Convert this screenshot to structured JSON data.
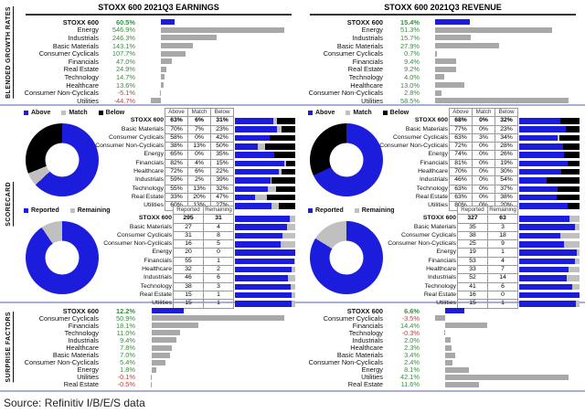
{
  "source": "Source: Refinitiv I/B/E/S data",
  "colors": {
    "blue": "#1c1cdd",
    "gray_bar": "#a8a8a8",
    "match_gray": "#c0c0c0",
    "black": "#000000",
    "green": "#3d8a44",
    "red": "#bb4040",
    "divider": "#a9aed6"
  },
  "sections": {
    "growth": {
      "side_label": "BLENDED GROWTH RATES"
    },
    "scorecard": {
      "side_label": "SCORECARD"
    },
    "surprise": {
      "side_label": "SURPRISE FACTORS"
    }
  },
  "chart_data": [
    {
      "id": "earnings_growth",
      "type": "bar",
      "title": "STOXX 600 2021Q3 EARNINGS",
      "categories": [
        "STOXX 600",
        "Energy",
        "Industrials",
        "Basic Materials",
        "Consumer Cyclicals",
        "Financials",
        "Real Estate",
        "Technology",
        "Healthcare",
        "Consumer Non-Cyclicals",
        "Utilities"
      ],
      "values": [
        60.5,
        546.9,
        246.3,
        143.1,
        107.7,
        47.0,
        24.9,
        14.7,
        13.6,
        -5.1,
        -44.7
      ],
      "unit": "%",
      "highlight_index": 0,
      "highlight_color_meaning": "STOXX 600 total shown in blue, sectors in gray"
    },
    {
      "id": "revenue_growth",
      "type": "bar",
      "title": "STOXX 600 2021Q3 REVENUE",
      "categories": [
        "STOXX 600",
        "Energy",
        "Industrials",
        "Basic Materials",
        "Consumer Cyclicals",
        "Financials",
        "Real Estate",
        "Technology",
        "Healthcare",
        "Consumer Non-Cyclicals",
        "Utilities"
      ],
      "values": [
        15.4,
        51.3,
        15.7,
        27.9,
        0.7,
        9.4,
        9.2,
        4.0,
        13.0,
        2.8,
        58.5
      ],
      "unit": "%",
      "highlight_index": 0
    },
    {
      "id": "earnings_amb",
      "type": "donut_stacked_table",
      "legend": [
        "Above",
        "Match",
        "Below"
      ],
      "categories": [
        "STOXX 600",
        "Basic Materials",
        "Consumer Cyclicals",
        "Consumer Non-Cyclicals",
        "Energy",
        "Financials",
        "Healthcare",
        "Industrials",
        "Technology",
        "Real Estate",
        "Utilities"
      ],
      "above": [
        63,
        70,
        58,
        38,
        65,
        82,
        72,
        59,
        55,
        33,
        60
      ],
      "match": [
        6,
        7,
        0,
        13,
        0,
        4,
        6,
        2,
        13,
        20,
        13
      ],
      "below": [
        31,
        23,
        42,
        50,
        35,
        15,
        22,
        39,
        32,
        47,
        27
      ],
      "unit": "%"
    },
    {
      "id": "revenue_amb",
      "type": "donut_stacked_table",
      "legend": [
        "Above",
        "Match",
        "Below"
      ],
      "categories": [
        "STOXX 600",
        "Basic Materials",
        "Consumer Cyclicals",
        "Consumer Non-Cyclicals",
        "Energy",
        "Financials",
        "Healthcare",
        "Industrials",
        "Technology",
        "Real Estate",
        "Utilities"
      ],
      "above": [
        68,
        77,
        63,
        72,
        74,
        81,
        70,
        46,
        63,
        63,
        80
      ],
      "match": [
        0,
        0,
        3,
        0,
        0,
        0,
        0,
        0,
        0,
        0,
        0
      ],
      "below": [
        32,
        23,
        34,
        28,
        26,
        19,
        30,
        54,
        37,
        38,
        20
      ],
      "unit": "%"
    },
    {
      "id": "earnings_reported",
      "type": "donut_progress_table",
      "legend": [
        "Reported",
        "Remaining"
      ],
      "categories": [
        "STOXX 600",
        "Basic Materials",
        "Consumer Cyclicals",
        "Consumer Non-Cyclicals",
        "Energy",
        "Financials",
        "Healthcare",
        "Industrials",
        "Technology",
        "Real Estate",
        "Utilities"
      ],
      "reported": [
        295,
        27,
        31,
        16,
        20,
        55,
        32,
        46,
        38,
        15,
        15
      ],
      "remaining": [
        31,
        4,
        8,
        5,
        0,
        1,
        2,
        6,
        3,
        1,
        1
      ]
    },
    {
      "id": "revenue_reported",
      "type": "donut_progress_table",
      "legend": [
        "Reported",
        "Remaining"
      ],
      "categories": [
        "STOXX 600",
        "Basic Materials",
        "Consumer Cyclicals",
        "Consumer Non-Cyclicals",
        "Energy",
        "Financials",
        "Healthcare",
        "Industrials",
        "Technology",
        "Real Estate",
        "Utilities"
      ],
      "reported": [
        327,
        35,
        38,
        25,
        19,
        53,
        33,
        52,
        41,
        16,
        15
      ],
      "remaining": [
        63,
        3,
        18,
        9,
        1,
        4,
        7,
        14,
        6,
        0,
        1
      ]
    },
    {
      "id": "earnings_surprise",
      "type": "bar",
      "title": "",
      "categories": [
        "STOXX 600",
        "Consumer Cyclicals",
        "Financials",
        "Technology",
        "Industrials",
        "Healthcare",
        "Basic Materials",
        "Consumer Non-Cyclicals",
        "Energy",
        "Utilities",
        "Real Estate"
      ],
      "values": [
        12.2,
        50.9,
        18.1,
        11.0,
        9.4,
        7.8,
        7.0,
        5.4,
        1.8,
        -0.1,
        -0.5
      ],
      "unit": "%",
      "highlight_index": 0
    },
    {
      "id": "revenue_surprise",
      "type": "bar",
      "title": "",
      "categories": [
        "STOXX 600",
        "Consumer Cyclicals",
        "Financials",
        "Technology",
        "Industrials",
        "Healthcare",
        "Basic Materials",
        "Consumer Non-Cyclicals",
        "Energy",
        "Utilities",
        "Real Estate"
      ],
      "values": [
        6.6,
        -3.5,
        14.4,
        -0.3,
        2.0,
        2.3,
        3.4,
        2.4,
        8.1,
        42.1,
        11.6
      ],
      "unit": "%",
      "highlight_index": 0
    }
  ]
}
